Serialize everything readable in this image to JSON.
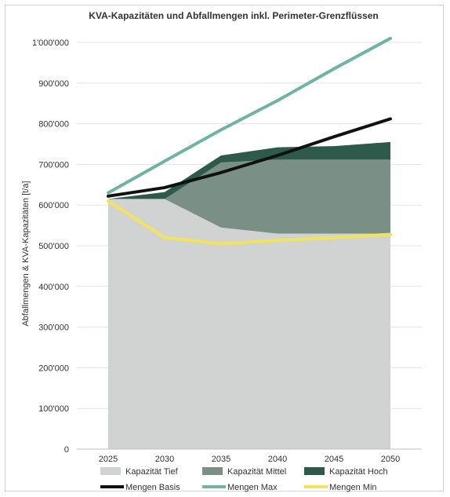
{
  "chart_data": {
    "type": "area",
    "title": "KVA-Kapazitäten und Abfallmengen inkl. Perimeter-Grenzflüssen",
    "ylabel": "Abfallmengen & KVA-Kapazitäten  [t/a]",
    "xlabel": "",
    "x": [
      2025,
      2030,
      2035,
      2040,
      2045,
      2050
    ],
    "x_tick_labels": [
      "2025",
      "2030",
      "2035",
      "2040",
      "2045",
      "2050"
    ],
    "ylim": [
      0,
      1000000
    ],
    "y_ticks": [
      0,
      100000,
      200000,
      300000,
      400000,
      500000,
      600000,
      700000,
      800000,
      900000,
      1000000
    ],
    "y_tick_labels": [
      "0",
      "100'000",
      "200'000",
      "300'000",
      "400'000",
      "500'000",
      "600'000",
      "700'000",
      "800'000",
      "900'000",
      "1'000'000"
    ],
    "grid": "horizontal",
    "legend_position": "bottom",
    "areas": [
      {
        "name": "Kapazität Tief",
        "color": "#d0d3d1",
        "values": [
          615000,
          615000,
          545000,
          530000,
          530000,
          530000
        ]
      },
      {
        "name": "Kapazität Mittel",
        "color": "#7a8f86",
        "values": [
          615000,
          615000,
          705000,
          712000,
          712000,
          712000
        ]
      },
      {
        "name": "Kapazität Hoch",
        "color": "#2d5a4b",
        "values": [
          615000,
          632000,
          722000,
          742000,
          745000,
          755000
        ]
      }
    ],
    "lines": [
      {
        "name": "Mengen Basis",
        "color": "#111111",
        "values": [
          622000,
          643000,
          680000,
          722000,
          768000,
          812000
        ]
      },
      {
        "name": "Mengen Max",
        "color": "#6fb3a3",
        "values": [
          630000,
          708000,
          785000,
          857000,
          935000,
          1010000
        ]
      },
      {
        "name": "Mengen Min",
        "color": "#f2e45a",
        "values": [
          610000,
          520000,
          505000,
          513000,
          520000,
          528000
        ]
      }
    ],
    "legend": [
      {
        "label": "Kapazität Tief",
        "kind": "area",
        "color": "#d0d3d1"
      },
      {
        "label": "Kapazität Mittel",
        "kind": "area",
        "color": "#7a8f86"
      },
      {
        "label": "Kapazität Hoch",
        "kind": "area",
        "color": "#2d5a4b"
      },
      {
        "label": "Mengen Basis",
        "kind": "line",
        "color": "#111111"
      },
      {
        "label": "Mengen Max",
        "kind": "line",
        "color": "#6fb3a3"
      },
      {
        "label": "Mengen Min",
        "kind": "line",
        "color": "#f2e45a"
      }
    ]
  }
}
